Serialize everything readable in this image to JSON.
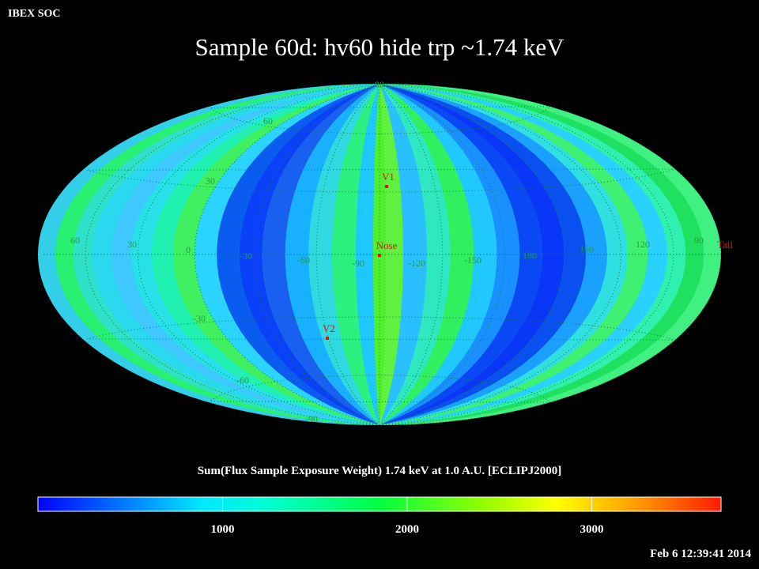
{
  "header": {
    "org": "IBEX SOC",
    "title": "Sample 60d: hv60 hide trp ~1.74 keV",
    "timestamp": "Feb  6 12:39:41 2014"
  },
  "map": {
    "projection": "Aitoff/Hammer (equal-area, elliptical)",
    "latitude_labels": [
      "90",
      "60",
      "30",
      "-30",
      "-60",
      "-90"
    ],
    "longitude_labels": [
      "60",
      "30",
      "0",
      "-30",
      "-60",
      "-90",
      "-120",
      "-150",
      "180",
      "150",
      "120",
      "90"
    ],
    "markers": [
      {
        "name": "V1",
        "lon": -91,
        "lat": 34
      },
      {
        "name": "Nose",
        "lon": -90,
        "lat": 0
      },
      {
        "name": "V2",
        "lon": -57,
        "lat": -33
      },
      {
        "name": "Tail",
        "lon": 90,
        "lat": 0
      }
    ]
  },
  "colorbar": {
    "title": "Sum(Flux Sample Exposure Weight)  1.74 keV at 1.0 A.U. [ECLIPJ2000]",
    "min": 0,
    "max": 3700,
    "ticks": [
      "1000",
      "2000",
      "3000"
    ],
    "tick_values": [
      1000,
      2000,
      3000
    ]
  },
  "colors": {
    "marker": "#e01010",
    "grid": "#1a7a40",
    "label": "#1f9e3e"
  }
}
